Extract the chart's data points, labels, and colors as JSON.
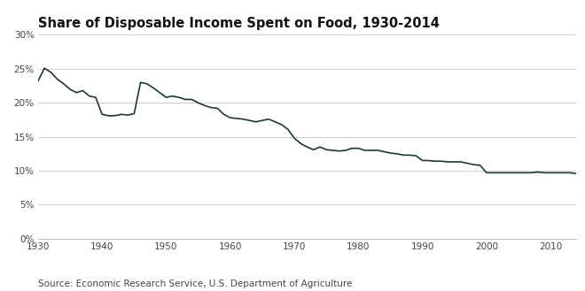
{
  "title": "Share of Disposable Income Spent on Food, 1930-2014",
  "source_text": "Source: Economic Research Service, U.S. Department of Agriculture",
  "line_color": "#1a3a2a",
  "background_color": "#ffffff",
  "xlim": [
    1930,
    2014
  ],
  "ylim": [
    0,
    0.3
  ],
  "yticks": [
    0,
    0.05,
    0.1,
    0.15,
    0.2,
    0.25,
    0.3
  ],
  "ytick_labels": [
    "0%",
    "5%",
    "10%",
    "15%",
    "20%",
    "25%",
    "30%"
  ],
  "xticks": [
    1930,
    1940,
    1950,
    1960,
    1970,
    1980,
    1990,
    2000,
    2010
  ],
  "years": [
    1930,
    1931,
    1932,
    1933,
    1934,
    1935,
    1936,
    1937,
    1938,
    1939,
    1940,
    1941,
    1942,
    1943,
    1944,
    1945,
    1946,
    1947,
    1948,
    1949,
    1950,
    1951,
    1952,
    1953,
    1954,
    1955,
    1956,
    1957,
    1958,
    1959,
    1960,
    1961,
    1962,
    1963,
    1964,
    1965,
    1966,
    1967,
    1968,
    1969,
    1970,
    1971,
    1972,
    1973,
    1974,
    1975,
    1976,
    1977,
    1978,
    1979,
    1980,
    1981,
    1982,
    1983,
    1984,
    1985,
    1986,
    1987,
    1988,
    1989,
    1990,
    1991,
    1992,
    1993,
    1994,
    1995,
    1996,
    1997,
    1998,
    1999,
    2000,
    2001,
    2002,
    2003,
    2004,
    2005,
    2006,
    2007,
    2008,
    2009,
    2010,
    2011,
    2012,
    2013,
    2014
  ],
  "values": [
    0.232,
    0.251,
    0.245,
    0.235,
    0.228,
    0.22,
    0.215,
    0.218,
    0.21,
    0.208,
    0.183,
    0.181,
    0.181,
    0.183,
    0.182,
    0.184,
    0.23,
    0.228,
    0.222,
    0.215,
    0.208,
    0.21,
    0.208,
    0.205,
    0.205,
    0.2,
    0.196,
    0.193,
    0.192,
    0.183,
    0.178,
    0.177,
    0.176,
    0.174,
    0.172,
    0.174,
    0.176,
    0.172,
    0.168,
    0.161,
    0.148,
    0.14,
    0.135,
    0.131,
    0.135,
    0.131,
    0.13,
    0.129,
    0.13,
    0.133,
    0.133,
    0.13,
    0.13,
    0.13,
    0.128,
    0.126,
    0.125,
    0.123,
    0.123,
    0.122,
    0.115,
    0.115,
    0.114,
    0.114,
    0.113,
    0.113,
    0.113,
    0.111,
    0.109,
    0.108,
    0.097,
    0.097,
    0.097,
    0.097,
    0.097,
    0.097,
    0.097,
    0.097,
    0.098,
    0.097,
    0.097,
    0.097,
    0.097,
    0.097,
    0.096
  ]
}
